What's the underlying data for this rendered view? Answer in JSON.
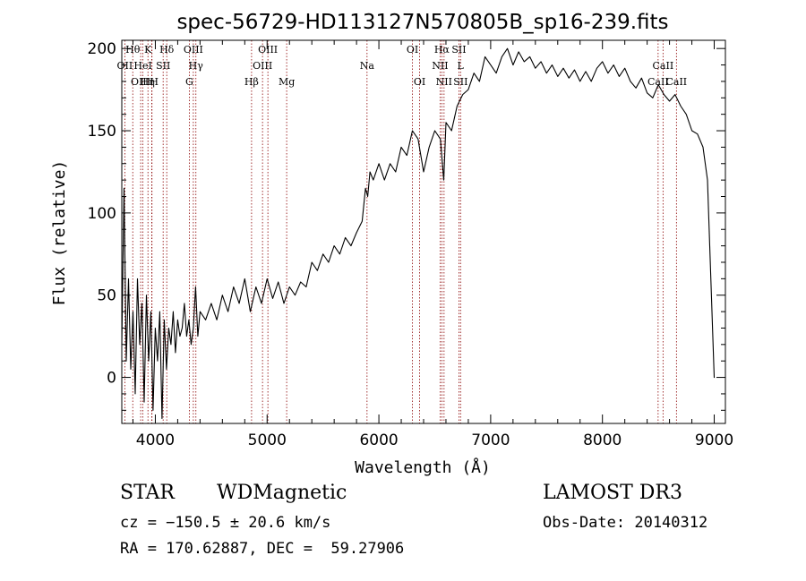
{
  "chart_data": {
    "type": "line",
    "title": "spec-56729-HD113127N570805B_sp16-239.fits",
    "xlabel": "Wavelength (Å)",
    "ylabel": "Flux (relative)",
    "xlim": [
      3700,
      9100
    ],
    "ylim": [
      -28,
      205
    ],
    "xticks": [
      4000,
      5000,
      6000,
      7000,
      8000,
      9000
    ],
    "yticks": [
      0,
      50,
      100,
      150,
      200
    ],
    "grid": false,
    "line_color": "#000000",
    "marker_color": "#8b0000",
    "series": [
      {
        "x": [
          3700,
          3720,
          3740,
          3760,
          3780,
          3800,
          3820,
          3840,
          3860,
          3880,
          3900,
          3920,
          3940,
          3960,
          3980,
          4000,
          4020,
          4040,
          4060,
          4080,
          4100,
          4120,
          4140,
          4160,
          4180,
          4200,
          4220,
          4240,
          4260,
          4280,
          4300,
          4320,
          4340,
          4360,
          4380,
          4400,
          4450,
          4500,
          4550,
          4600,
          4650,
          4700,
          4750,
          4800,
          4850,
          4900,
          4950,
          5000,
          5050,
          5100,
          5150,
          5200,
          5250,
          5300,
          5350,
          5400,
          5450,
          5500,
          5550,
          5600,
          5650,
          5700,
          5750,
          5800,
          5850,
          5880,
          5900,
          5920,
          5950,
          6000,
          6050,
          6100,
          6150,
          6200,
          6250,
          6300,
          6350,
          6400,
          6450,
          6500,
          6550,
          6580,
          6600,
          6650,
          6700,
          6750,
          6800,
          6850,
          6900,
          6950,
          7000,
          7050,
          7100,
          7150,
          7200,
          7250,
          7300,
          7350,
          7400,
          7450,
          7500,
          7550,
          7600,
          7650,
          7700,
          7750,
          7800,
          7850,
          7900,
          7950,
          8000,
          8050,
          8100,
          8150,
          8200,
          8250,
          8300,
          8350,
          8400,
          8450,
          8500,
          8550,
          8600,
          8650,
          8700,
          8750,
          8800,
          8850,
          8900,
          8940,
          8960,
          8980,
          9000,
          9005
        ],
        "y": [
          20,
          115,
          10,
          60,
          5,
          40,
          -10,
          60,
          20,
          45,
          -15,
          50,
          10,
          40,
          -20,
          30,
          10,
          40,
          -25,
          35,
          5,
          30,
          20,
          40,
          15,
          35,
          25,
          30,
          45,
          25,
          35,
          20,
          30,
          55,
          25,
          40,
          35,
          45,
          35,
          50,
          40,
          55,
          45,
          60,
          40,
          55,
          45,
          60,
          48,
          58,
          45,
          55,
          50,
          58,
          55,
          70,
          65,
          75,
          70,
          80,
          75,
          85,
          80,
          88,
          95,
          115,
          110,
          125,
          120,
          130,
          120,
          130,
          125,
          140,
          135,
          150,
          145,
          125,
          140,
          150,
          145,
          120,
          155,
          150,
          165,
          172,
          175,
          185,
          180,
          195,
          190,
          185,
          195,
          200,
          190,
          198,
          192,
          195,
          188,
          192,
          185,
          190,
          183,
          188,
          182,
          187,
          180,
          186,
          180,
          188,
          192,
          185,
          190,
          183,
          188,
          180,
          176,
          182,
          173,
          170,
          178,
          172,
          168,
          172,
          165,
          160,
          150,
          148,
          140,
          120,
          80,
          40,
          0,
          0
        ]
      }
    ],
    "lines": [
      {
        "name": "OII",
        "wave": 3727
      },
      {
        "name": "Hθ",
        "wave": 3798
      },
      {
        "name": "OIII",
        "wave": 3869
      },
      {
        "name": "HeI",
        "wave": 3889
      },
      {
        "name": "K",
        "wave": 3934
      },
      {
        "name": "Hη",
        "wave": 3970
      },
      {
        "name": "H",
        "wave": 3968
      },
      {
        "name": "SII",
        "wave": 4070
      },
      {
        "name": "Hδ",
        "wave": 4102
      },
      {
        "name": "G",
        "wave": 4304
      },
      {
        "name": "OIII",
        "wave": 4340
      },
      {
        "name": "Hγ",
        "wave": 4363
      },
      {
        "name": "Hβ",
        "wave": 4861
      },
      {
        "name": "OIII",
        "wave": 4959
      },
      {
        "name": "OIII",
        "wave": 5007
      },
      {
        "name": "Mg",
        "wave": 5175
      },
      {
        "name": "Na",
        "wave": 5894
      },
      {
        "name": "OI",
        "wave": 6300
      },
      {
        "name": "OI",
        "wave": 6364
      },
      {
        "name": "NII",
        "wave": 6548
      },
      {
        "name": "Hα",
        "wave": 6563
      },
      {
        "name": "NII",
        "wave": 6583
      },
      {
        "name": "SII",
        "wave": 6716
      },
      {
        "name": "SII",
        "wave": 6731
      },
      {
        "name": "CaII",
        "wave": 8498
      },
      {
        "name": "CaII",
        "wave": 8542
      },
      {
        "name": "CaII",
        "wave": 8662
      }
    ],
    "line_labels": [
      {
        "text": "Hθ",
        "wave": 3798,
        "row": 0
      },
      {
        "text": "K",
        "wave": 3934,
        "row": 0
      },
      {
        "text": "Hδ",
        "wave": 4102,
        "row": 0
      },
      {
        "text": "OII",
        "wave": 3727,
        "row": 1
      },
      {
        "text": "HeI",
        "wave": 3889,
        "row": 1
      },
      {
        "text": "SII",
        "wave": 4070,
        "row": 1
      },
      {
        "text": "OIII",
        "wave": 3869,
        "row": 2
      },
      {
        "text": "Hη",
        "wave": 3930,
        "row": 2
      },
      {
        "text": "H",
        "wave": 3990,
        "row": 2
      },
      {
        "text": "OIII",
        "wave": 4340,
        "row": 0
      },
      {
        "text": "Hγ",
        "wave": 4363,
        "row": 1
      },
      {
        "text": "G",
        "wave": 4304,
        "row": 2
      },
      {
        "text": "OIII",
        "wave": 5007,
        "row": 0
      },
      {
        "text": "OIII",
        "wave": 4959,
        "row": 1
      },
      {
        "text": "Hβ",
        "wave": 4861,
        "row": 2
      },
      {
        "text": "Mg",
        "wave": 5175,
        "row": 2
      },
      {
        "text": "Na",
        "wave": 5894,
        "row": 1
      },
      {
        "text": "OI",
        "wave": 6300,
        "row": 0
      },
      {
        "text": "OI",
        "wave": 6364,
        "row": 2
      },
      {
        "text": "Hα",
        "wave": 6563,
        "row": 0
      },
      {
        "text": "NII",
        "wave": 6548,
        "row": 1
      },
      {
        "text": "NII",
        "wave": 6583,
        "row": 2
      },
      {
        "text": "SII",
        "wave": 6716,
        "row": 0
      },
      {
        "text": "L",
        "wave": 6730,
        "row": 1
      },
      {
        "text": "SII",
        "wave": 6731,
        "row": 2
      },
      {
        "text": "CaII",
        "wave": 8542,
        "row": 1
      },
      {
        "text": "CaII",
        "wave": 8498,
        "row": 2
      },
      {
        "text": "CaII",
        "wave": 8662,
        "row": 3
      }
    ]
  },
  "info": {
    "class_label": "STAR",
    "subclass": "WDMagnetic",
    "survey": "LAMOST DR3",
    "cz": "cz = −150.5 ± 20.6 km/s",
    "obs_date": "Obs-Date: 20140312",
    "coords": "RA = 170.62887, DEC =  59.27906"
  }
}
